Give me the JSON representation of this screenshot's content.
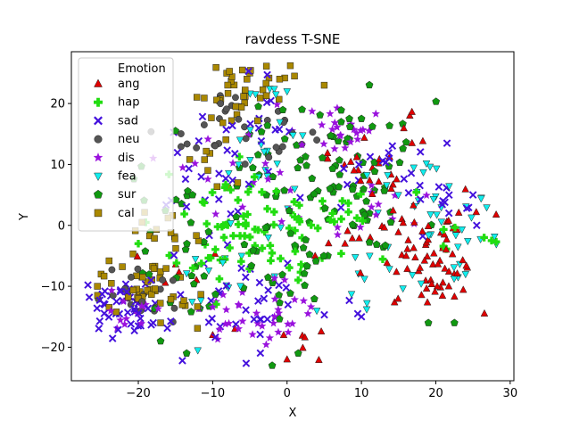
{
  "chart_data": {
    "type": "scatter",
    "title": "ravdess T-SNE",
    "xlabel": "X",
    "ylabel": "Y",
    "xlim": [
      -29,
      30.5
    ],
    "ylim": [
      -25.5,
      28.5
    ],
    "xticks": [
      -20,
      -10,
      0,
      10,
      20,
      30
    ],
    "yticks": [
      -20,
      -10,
      0,
      10,
      20
    ],
    "grid": false,
    "legend_title": "Emotion",
    "legend_position": "top-left",
    "series": [
      {
        "name": "ang",
        "marker": "triangle-up",
        "color": "#e00000",
        "clusters": [
          [
            20,
            -6,
            4,
            4,
            70
          ],
          [
            11,
            8,
            3,
            3,
            20
          ],
          [
            8,
            -4,
            2,
            2,
            8
          ],
          [
            -15,
            -7,
            2,
            2,
            6
          ],
          [
            2,
            -19,
            2,
            2,
            6
          ],
          [
            17,
            15,
            2,
            2,
            4
          ]
        ],
        "points": [
          [
            16.5,
            18
          ],
          [
            -7,
            -17
          ],
          [
            -10,
            -18
          ],
          [
            0,
            -22
          ],
          [
            9,
            9
          ],
          [
            14,
            6
          ]
        ]
      },
      {
        "name": "hap",
        "marker": "plus",
        "color": "#22dd11",
        "clusters": [
          [
            -3,
            -3,
            6,
            4,
            45
          ],
          [
            -12,
            -3,
            3,
            3,
            15
          ],
          [
            -8,
            6,
            3,
            4,
            12
          ],
          [
            0,
            1,
            3,
            3,
            14
          ],
          [
            22,
            -3,
            3,
            3,
            6
          ],
          [
            8,
            2,
            2,
            2,
            6
          ]
        ],
        "points": [
          [
            27.5,
            -2.5
          ],
          [
            26.5,
            -2
          ],
          [
            -19,
            0.5
          ],
          [
            -20,
            -3
          ]
        ]
      },
      {
        "name": "sad",
        "marker": "x",
        "color": "#4411dd",
        "clusters": [
          [
            -22,
            -13,
            4,
            3,
            45
          ],
          [
            -5,
            -12,
            4,
            5,
            35
          ],
          [
            15,
            10,
            4,
            3,
            18
          ],
          [
            -5,
            15,
            4,
            5,
            25
          ],
          [
            22,
            3,
            2,
            2,
            10
          ],
          [
            -12,
            3,
            3,
            3,
            10
          ]
        ],
        "points": [
          [
            -24.5,
            -13
          ],
          [
            -23,
            -14.5
          ],
          [
            -20,
            -16.5
          ],
          [
            25,
            5
          ],
          [
            25.5,
            0
          ],
          [
            10,
            -15
          ],
          [
            9.5,
            -14.5
          ],
          [
            -18,
            -16
          ]
        ]
      },
      {
        "name": "neu",
        "marker": "circle",
        "color": "#555555",
        "clusters": [
          [
            -20,
            -11,
            2.5,
            2,
            20
          ],
          [
            -8,
            17,
            2,
            3,
            15
          ],
          [
            0,
            14,
            2,
            2,
            10
          ],
          [
            -12,
            13,
            2,
            2,
            6
          ]
        ],
        "points": [
          [
            -21,
            -13
          ],
          [
            -19.5,
            -12.5
          ],
          [
            4,
            14
          ]
        ]
      },
      {
        "name": "dis",
        "marker": "star",
        "color": "#9911dd",
        "clusters": [
          [
            -5,
            -14,
            4,
            3,
            35
          ],
          [
            6,
            16,
            4,
            3,
            25
          ],
          [
            -22,
            -14,
            3,
            2,
            12
          ],
          [
            12,
            2,
            3,
            3,
            12
          ],
          [
            -3,
            2,
            3,
            3,
            10
          ],
          [
            -10,
            10,
            2,
            3,
            6
          ]
        ],
        "points": [
          [
            -18,
            11
          ],
          [
            -22,
            -12.5
          ],
          [
            -19,
            -13
          ]
        ]
      },
      {
        "name": "fea",
        "marker": "triangle-down",
        "color": "#11eeee",
        "clusters": [
          [
            21,
            -1,
            4,
            4,
            35
          ],
          [
            12,
            -9,
            3,
            2,
            10
          ],
          [
            -4,
            10,
            3,
            4,
            18
          ],
          [
            -8,
            -8,
            4,
            4,
            14
          ],
          [
            15,
            7,
            3,
            3,
            8
          ],
          [
            -3,
            21,
            2,
            2,
            6
          ]
        ],
        "points": [
          [
            0,
            22
          ],
          [
            -1.5,
            21.5
          ],
          [
            24,
            -8
          ],
          [
            23,
            -8.5
          ],
          [
            4,
            -14
          ],
          [
            -12,
            -20.5
          ]
        ]
      },
      {
        "name": "sur",
        "marker": "pentagon",
        "color": "#119911",
        "clusters": [
          [
            5,
            8,
            6,
            6,
            70
          ],
          [
            -12,
            -6,
            4,
            5,
            25
          ],
          [
            2,
            -6,
            4,
            4,
            20
          ],
          [
            -16,
            6,
            2,
            3,
            8
          ],
          [
            5,
            16,
            3,
            2,
            10
          ],
          [
            11,
            1,
            3,
            3,
            12
          ]
        ],
        "points": [
          [
            -17,
            -19
          ],
          [
            -13.5,
            -21
          ],
          [
            -2,
            -23
          ],
          [
            1.5,
            -21
          ],
          [
            19,
            -16
          ],
          [
            22.5,
            -16
          ],
          [
            10,
            17.5
          ],
          [
            -15,
            15.5
          ]
        ]
      },
      {
        "name": "cal",
        "marker": "square",
        "color": "#aa8800",
        "clusters": [
          [
            -19,
            -9,
            3,
            3,
            38
          ],
          [
            -7,
            21,
            3,
            3,
            30
          ],
          [
            -15,
            -1,
            2,
            2,
            12
          ],
          [
            -4,
            23,
            2,
            2,
            12
          ],
          [
            -11,
            9,
            2,
            2,
            8
          ],
          [
            -13,
            -14,
            2,
            2,
            6
          ]
        ],
        "points": [
          [
            -6,
            25.5
          ],
          [
            -5,
            25
          ],
          [
            -1,
            24
          ],
          [
            1,
            24.5
          ],
          [
            -25,
            -8
          ],
          [
            -25.5,
            -10
          ],
          [
            -17,
            -16
          ],
          [
            5,
            23
          ],
          [
            -19.5,
            0.5
          ]
        ]
      }
    ]
  }
}
